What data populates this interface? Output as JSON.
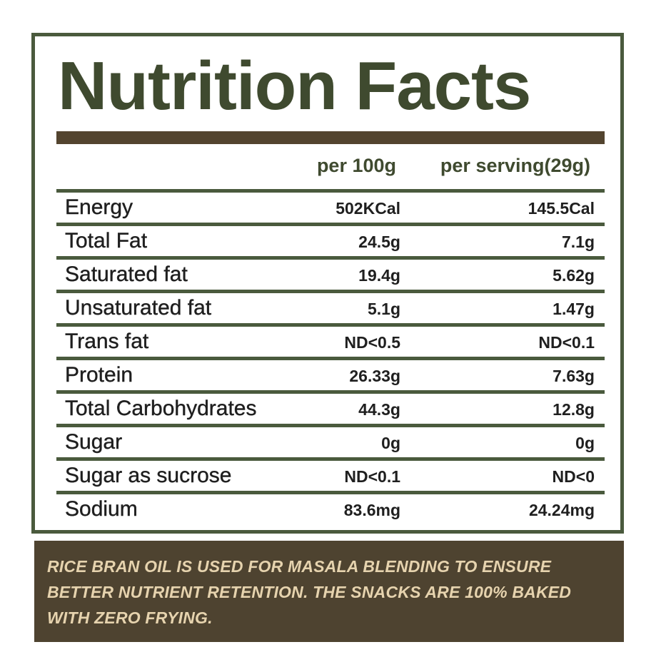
{
  "label": {
    "title": "Nutrition Facts",
    "columns": {
      "per_100g": "per 100g",
      "per_serving": "per serving(29g)"
    },
    "rows": [
      {
        "name": "Energy",
        "per_100g": "502KCal",
        "per_serving": "145.5Cal"
      },
      {
        "name": "Total Fat",
        "per_100g": "24.5g",
        "per_serving": "7.1g"
      },
      {
        "name": "Saturated fat",
        "per_100g": "19.4g",
        "per_serving": "5.62g"
      },
      {
        "name": "Unsaturated fat",
        "per_100g": "5.1g",
        "per_serving": "1.47g"
      },
      {
        "name": "Trans fat",
        "per_100g": "ND<0.5",
        "per_serving": "ND<0.1"
      },
      {
        "name": "Protein",
        "per_100g": "26.33g",
        "per_serving": "7.63g"
      },
      {
        "name": "Total Carbohydrates",
        "per_100g": "44.3g",
        "per_serving": "12.8g"
      },
      {
        "name": "Sugar",
        "per_100g": "0g",
        "per_serving": "0g"
      },
      {
        "name": "Sugar as sucrose",
        "per_100g": "ND<0.1",
        "per_serving": "ND<0"
      },
      {
        "name": "Sodium",
        "per_100g": "83.6mg",
        "per_serving": "24.24mg"
      }
    ]
  },
  "footer": {
    "text": "RICE BRAN OIL IS USED FOR MASALA BLENDING TO ENSURE BETTER NUTRIENT RETENTION. THE SNACKS ARE 100% BAKED WITH ZERO FRYING."
  },
  "colors": {
    "title": "#3f4a2f",
    "border": "#4a5a3d",
    "bar": "#53442f",
    "footer_bg": "#4e4330",
    "footer_text": "#e6d3ae"
  }
}
